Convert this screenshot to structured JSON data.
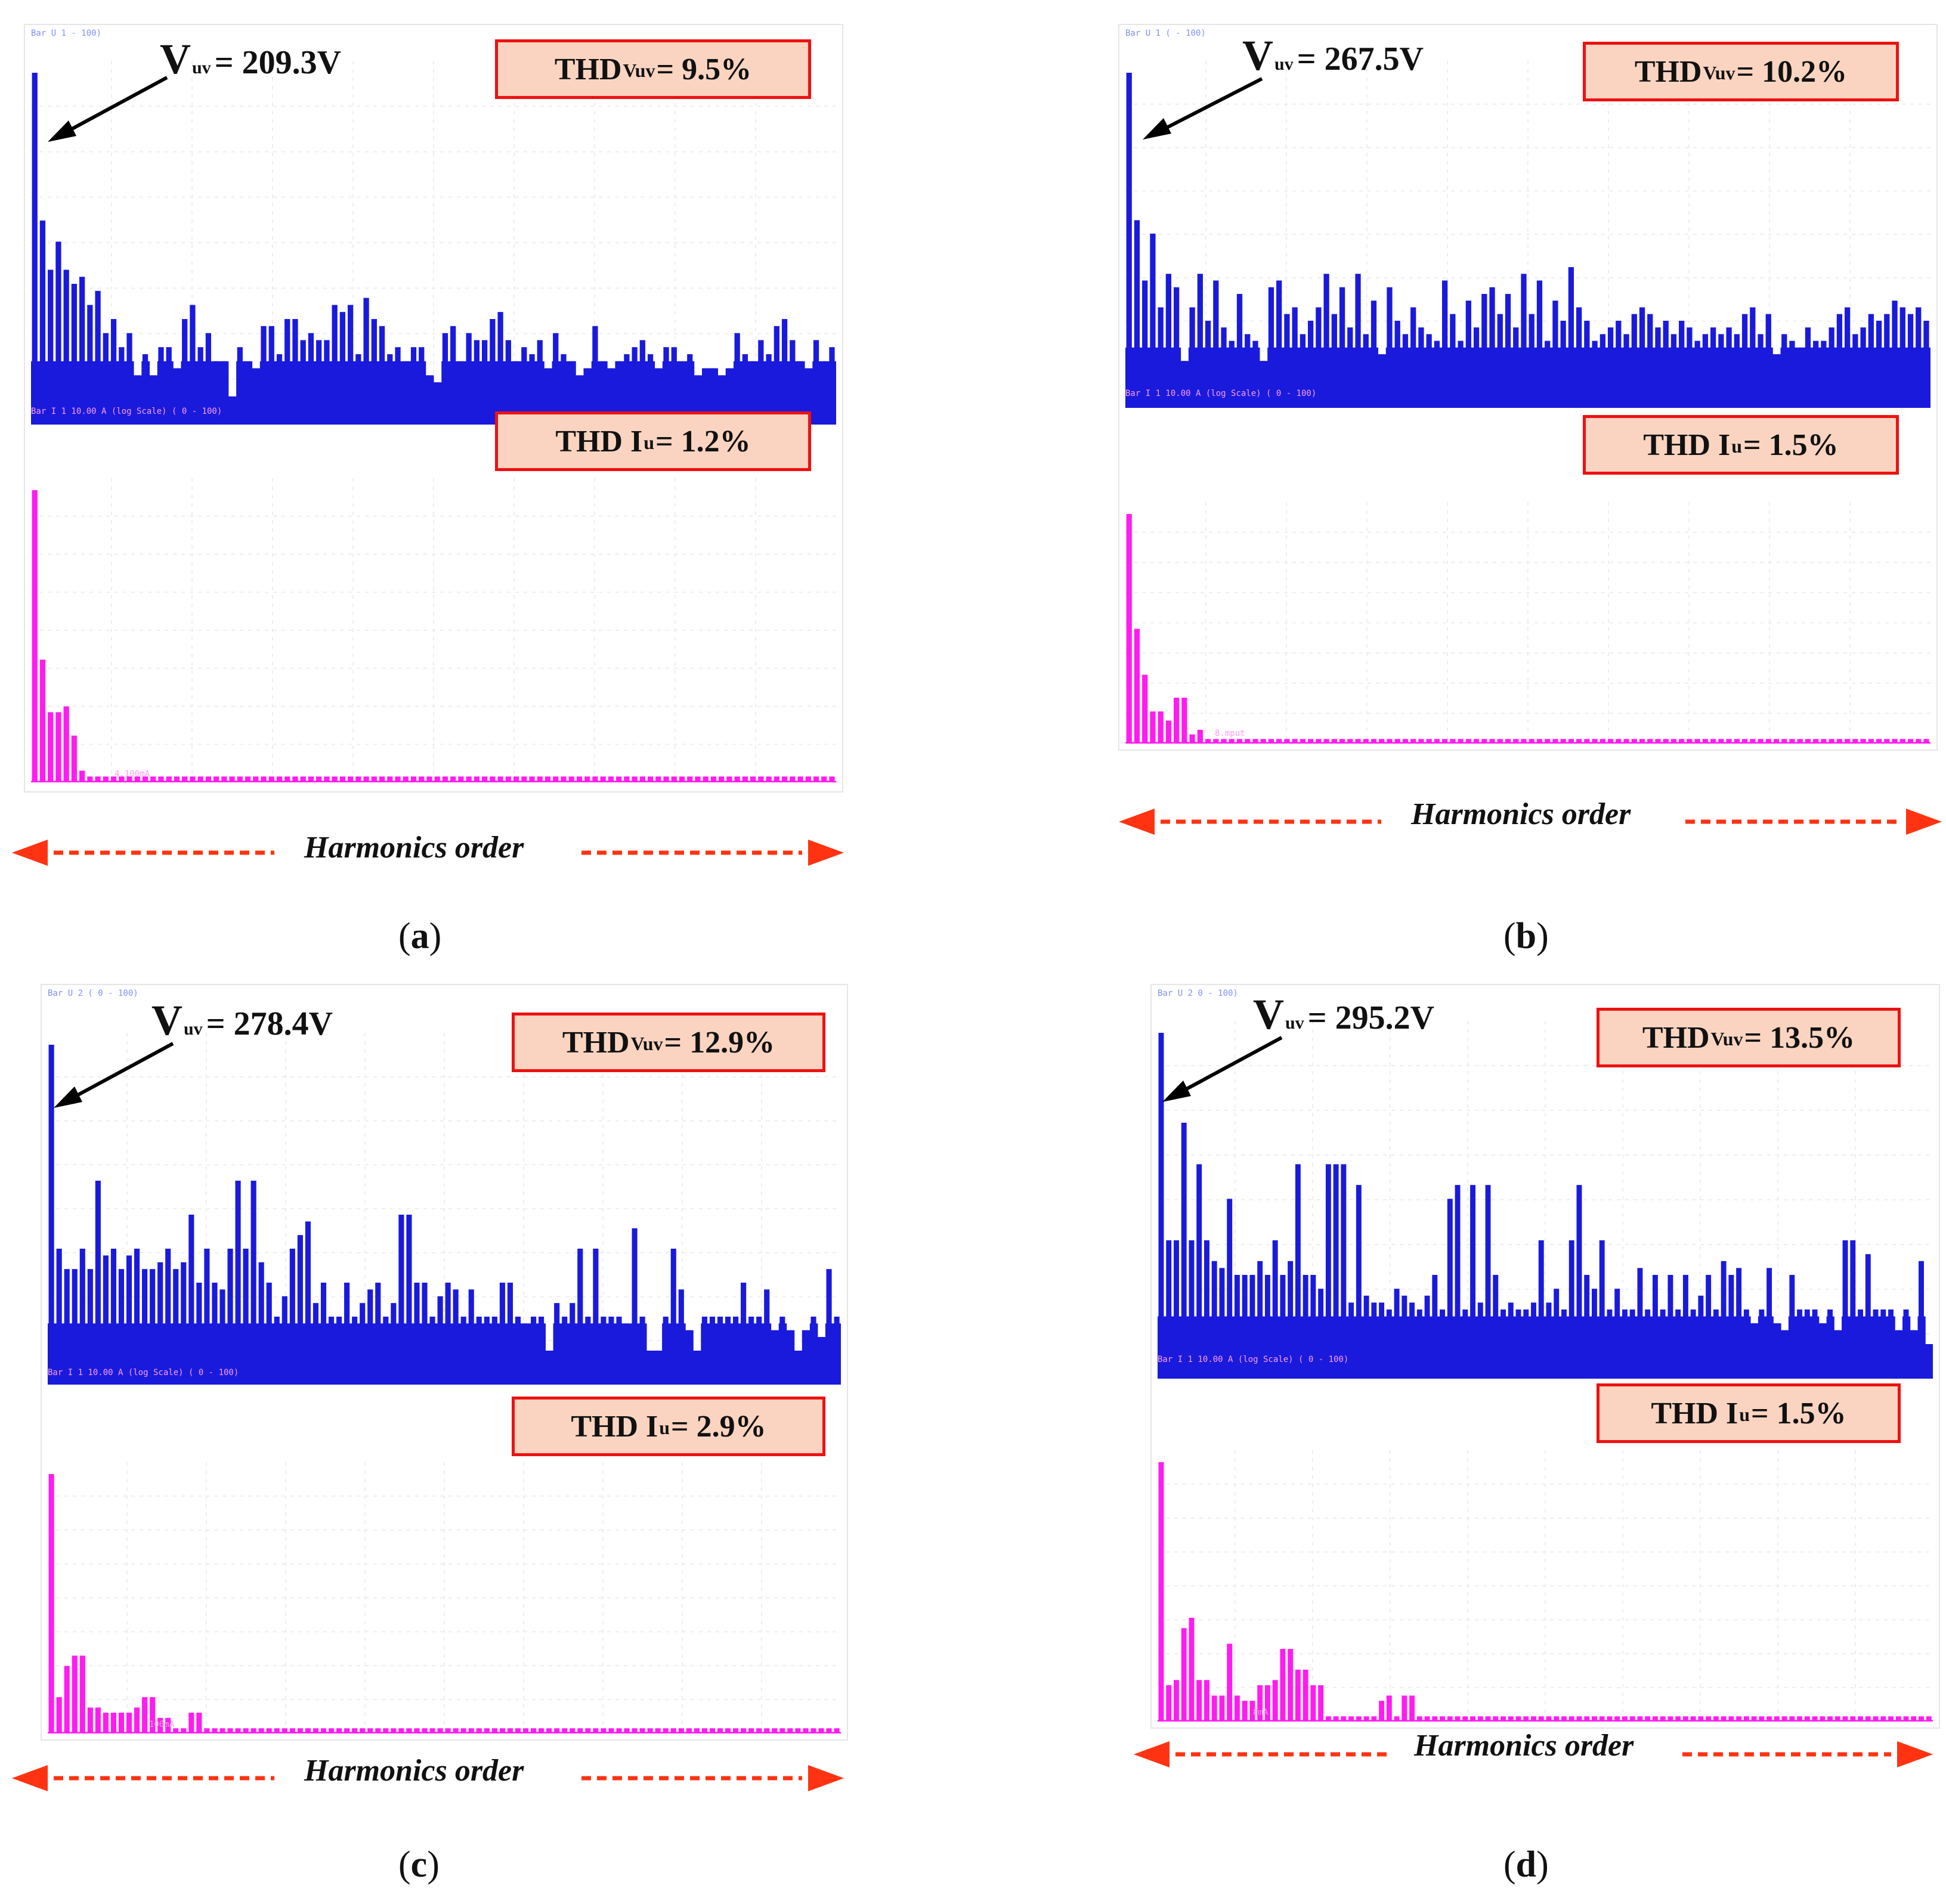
{
  "colors": {
    "voltage_bars": "#1a1adc",
    "current_bars": "#ff1cf0",
    "box_border": "#ee1111",
    "box_fill": "#fad4c0",
    "arrow": "#ff3311"
  },
  "harmonics_label": "Harmonics order",
  "chart_data": [
    {
      "id": "a",
      "caption": "a",
      "type": "bar",
      "vuv_label": "V",
      "vuv_sub": "uv",
      "vuv_value": "= 209.3V",
      "thdv_prefix": "THD",
      "thdv_sub": "Vuv",
      "thdv_value": "= 9.5%",
      "thdi_prefix": "THD I",
      "thdi_sub": "u",
      "thdi_value": "= 1.2%",
      "xlabel": "Harmonics order",
      "scope_top_header": "Bar U 1                              - 100)",
      "scope_bot_header": "Bar I 1       10.00 A   (log Scale)           ( 0 - 100)",
      "scope_bot_marker": "4.100mA",
      "voltage": [
        100,
        58,
        44,
        52,
        44,
        40,
        42,
        34,
        38,
        26,
        30,
        22,
        26,
        14,
        20,
        14,
        22,
        22,
        16,
        30,
        34,
        22,
        26,
        18,
        18,
        8,
        22,
        18,
        16,
        28,
        28,
        20,
        30,
        30,
        24,
        26,
        24,
        24,
        34,
        32,
        34,
        20,
        36,
        30,
        28,
        20,
        22,
        18,
        22,
        22,
        14,
        12,
        26,
        28,
        18,
        26,
        24,
        24,
        30,
        32,
        24,
        18,
        22,
        20,
        24,
        16,
        26,
        20,
        18,
        14,
        16,
        28,
        18,
        16,
        18,
        20,
        22,
        24,
        20,
        16,
        22,
        22,
        18,
        20,
        14,
        16,
        16,
        14,
        16,
        26,
        20,
        18,
        24,
        20,
        28,
        30,
        24,
        18,
        16,
        24,
        18,
        22
      ],
      "current": [
        100,
        42,
        24,
        24,
        26,
        16,
        4,
        2,
        2,
        2,
        2,
        2,
        2,
        2,
        2,
        2,
        2,
        2,
        2,
        2,
        2,
        2,
        2,
        2,
        2,
        2,
        2,
        2,
        2,
        2,
        2,
        2,
        2,
        2,
        2,
        2,
        2,
        2,
        2,
        2,
        2,
        2,
        2,
        2,
        2,
        2,
        2,
        2,
        2,
        2,
        2,
        2,
        2,
        2,
        2,
        2,
        2,
        2,
        2,
        2,
        2,
        2,
        2,
        2,
        2,
        2,
        2,
        2,
        2,
        2,
        2,
        2,
        2,
        2,
        2,
        2,
        2,
        2,
        2,
        2,
        2,
        2,
        2,
        2,
        2,
        2,
        2,
        2,
        2,
        2,
        2,
        2,
        2,
        2,
        2,
        2,
        2,
        2,
        2,
        2,
        2,
        2
      ]
    },
    {
      "id": "b",
      "caption": "b",
      "type": "bar",
      "vuv_label": "V",
      "vuv_sub": "uv",
      "vuv_value": "= 267.5V",
      "thdv_prefix": "THD",
      "thdv_sub": "Vuv",
      "thdv_value": "= 10.2%",
      "thdi_prefix": "THD I",
      "thdi_sub": "u",
      "thdi_value": "= 1.5%",
      "xlabel": "Harmonics order",
      "scope_top_header": "Bar U 1                               ( - 100)",
      "scope_bot_header": "Bar I 1       10.00 A   (log Scale)           ( 0 - 100)",
      "scope_bot_marker": "8.mput",
      "voltage": [
        100,
        56,
        38,
        52,
        30,
        40,
        36,
        14,
        30,
        40,
        26,
        38,
        24,
        20,
        34,
        22,
        20,
        14,
        36,
        38,
        28,
        30,
        22,
        26,
        30,
        40,
        28,
        36,
        24,
        40,
        22,
        32,
        16,
        36,
        26,
        22,
        30,
        24,
        22,
        20,
        38,
        28,
        20,
        32,
        24,
        34,
        36,
        28,
        34,
        24,
        40,
        28,
        38,
        20,
        32,
        26,
        42,
        30,
        26,
        20,
        22,
        24,
        26,
        22,
        28,
        30,
        28,
        24,
        26,
        22,
        26,
        24,
        20,
        22,
        24,
        22,
        24,
        22,
        28,
        30,
        22,
        28,
        16,
        22,
        20,
        18,
        24,
        20,
        20,
        24,
        28,
        30,
        22,
        24,
        28,
        26,
        28,
        32,
        30,
        28,
        30,
        26
      ],
      "current": [
        100,
        50,
        30,
        14,
        14,
        10,
        20,
        20,
        4,
        6,
        2,
        2,
        2,
        2,
        2,
        2,
        2,
        2,
        2,
        2,
        2,
        2,
        2,
        2,
        2,
        2,
        2,
        2,
        2,
        2,
        2,
        2,
        2,
        2,
        2,
        2,
        2,
        2,
        2,
        2,
        2,
        2,
        2,
        2,
        2,
        2,
        2,
        2,
        2,
        2,
        2,
        2,
        2,
        2,
        2,
        2,
        2,
        2,
        2,
        2,
        2,
        2,
        2,
        2,
        2,
        2,
        2,
        2,
        2,
        2,
        2,
        2,
        2,
        2,
        2,
        2,
        2,
        2,
        2,
        2,
        2,
        2,
        2,
        2,
        2,
        2,
        2,
        2,
        2,
        2,
        2,
        2,
        2,
        2,
        2,
        2,
        2,
        2,
        2,
        2,
        2,
        2
      ]
    },
    {
      "id": "c",
      "caption": "c",
      "type": "bar",
      "vuv_label": "V",
      "vuv_sub": "uv",
      "vuv_value": "= 278.4V",
      "thdv_prefix": "THD",
      "thdv_sub": "Vuv",
      "thdv_value": "= 12.9%",
      "thdi_prefix": "THD I",
      "thdi_sub": "u",
      "thdi_value": "= 2.9%",
      "xlabel": "Harmonics order",
      "scope_top_header": "Bar U 2                           ( 0 - 100)",
      "scope_bot_header": "Bar I 1       10.00 A   (log Scale)           ( 0 - 100)",
      "scope_bot_marker": "100mA",
      "voltage": [
        100,
        40,
        34,
        34,
        40,
        34,
        60,
        38,
        40,
        34,
        38,
        40,
        34,
        34,
        36,
        40,
        34,
        36,
        50,
        30,
        40,
        30,
        28,
        40,
        60,
        40,
        60,
        36,
        30,
        20,
        26,
        40,
        44,
        48,
        24,
        30,
        20,
        20,
        30,
        20,
        24,
        28,
        30,
        20,
        24,
        50,
        50,
        30,
        30,
        20,
        26,
        30,
        28,
        20,
        28,
        20,
        20,
        20,
        30,
        30,
        20,
        18,
        20,
        20,
        10,
        24,
        20,
        24,
        40,
        20,
        40,
        20,
        20,
        20,
        18,
        46,
        20,
        10,
        10,
        20,
        40,
        28,
        16,
        10,
        20,
        20,
        20,
        20,
        20,
        30,
        20,
        20,
        28,
        16,
        20,
        16,
        10,
        16,
        20,
        14,
        34,
        20
      ],
      "current": [
        100,
        14,
        26,
        30,
        30,
        10,
        10,
        8,
        8,
        8,
        8,
        10,
        14,
        14,
        6,
        6,
        2,
        2,
        8,
        8,
        2,
        2,
        2,
        2,
        2,
        2,
        2,
        2,
        2,
        2,
        2,
        2,
        2,
        2,
        2,
        2,
        2,
        2,
        2,
        2,
        2,
        2,
        2,
        2,
        2,
        2,
        2,
        2,
        2,
        2,
        2,
        2,
        2,
        2,
        2,
        2,
        2,
        2,
        2,
        2,
        2,
        2,
        2,
        2,
        2,
        2,
        2,
        2,
        2,
        2,
        2,
        2,
        2,
        2,
        2,
        2,
        2,
        2,
        2,
        2,
        2,
        2,
        2,
        2,
        2,
        2,
        2,
        2,
        2,
        2,
        2,
        2,
        2,
        2,
        2,
        2,
        2,
        2,
        2,
        2,
        2,
        2
      ]
    },
    {
      "id": "d",
      "caption": "d",
      "type": "bar",
      "vuv_label": "V",
      "vuv_sub": "uv",
      "vuv_value": "= 295.2V",
      "thdv_prefix": "THD",
      "thdv_sub": "Vuv",
      "thdv_value": "= 13.5%",
      "thdi_prefix": "THD I",
      "thdi_sub": "u",
      "thdi_value": "= 1.5%",
      "xlabel": "Harmonics order",
      "scope_top_header": "Bar U 2                              0 - 100)",
      "scope_bot_header": "Bar I 1       10.00 A   (log Scale)           ( 0 - 100)",
      "scope_bot_marker": "8mA",
      "voltage": [
        100,
        40,
        40,
        74,
        40,
        62,
        40,
        34,
        32,
        52,
        30,
        30,
        30,
        34,
        30,
        40,
        30,
        34,
        62,
        30,
        30,
        26,
        62,
        62,
        62,
        22,
        56,
        24,
        22,
        22,
        20,
        26,
        24,
        22,
        20,
        24,
        30,
        20,
        52,
        56,
        20,
        56,
        22,
        56,
        30,
        20,
        22,
        20,
        20,
        22,
        40,
        22,
        26,
        20,
        40,
        56,
        30,
        26,
        40,
        20,
        26,
        20,
        20,
        32,
        20,
        30,
        20,
        30,
        20,
        30,
        20,
        24,
        30,
        20,
        34,
        30,
        32,
        20,
        16,
        20,
        32,
        16,
        14,
        30,
        20,
        20,
        20,
        16,
        20,
        14,
        40,
        40,
        20,
        36,
        20,
        20,
        20,
        14,
        20,
        14,
        34,
        10
      ],
      "current": [
        100,
        14,
        16,
        36,
        40,
        16,
        16,
        10,
        10,
        30,
        10,
        8,
        8,
        14,
        14,
        16,
        28,
        28,
        20,
        20,
        14,
        14,
        2,
        2,
        2,
        2,
        2,
        2,
        2,
        8,
        10,
        2,
        10,
        10,
        2,
        2,
        2,
        2,
        2,
        2,
        2,
        2,
        2,
        2,
        2,
        2,
        2,
        2,
        2,
        2,
        2,
        2,
        2,
        2,
        2,
        2,
        2,
        2,
        2,
        2,
        2,
        2,
        2,
        2,
        2,
        2,
        2,
        2,
        2,
        2,
        2,
        2,
        2,
        2,
        2,
        2,
        2,
        2,
        2,
        2,
        2,
        2,
        2,
        2,
        2,
        2,
        2,
        2,
        2,
        2,
        2,
        2,
        2,
        2,
        2,
        2,
        2,
        2,
        2,
        2,
        2,
        2
      ]
    }
  ]
}
